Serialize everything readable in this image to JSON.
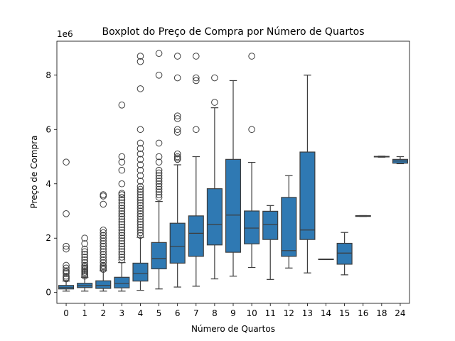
{
  "chart_data": {
    "type": "boxplot",
    "title": "Boxplot do Preço de Compra por Número de Quartos",
    "xlabel": "Número de Quartos",
    "ylabel": "Preço de Compra",
    "y_scale_label": "1e6",
    "y_unit": 1000000,
    "ylim": [
      -400000,
      9250000
    ],
    "yticks": [
      0,
      2000000,
      4000000,
      6000000,
      8000000
    ],
    "ytick_labels": [
      "0",
      "2",
      "4",
      "6",
      "8"
    ],
    "grid": false,
    "box_color": "#2f79b3",
    "categories": [
      "0",
      "1",
      "2",
      "3",
      "4",
      "5",
      "6",
      "7",
      "8",
      "9",
      "10",
      "11",
      "12",
      "13",
      "14",
      "15",
      "16",
      "18",
      "24"
    ],
    "boxes": [
      {
        "min": 50000,
        "q1": 130000,
        "median": 180000,
        "q3": 260000,
        "max": 420000,
        "outliers": [
          4800000,
          2900000,
          1700000,
          1600000,
          1000000,
          900000,
          800000,
          750000,
          700000,
          600000,
          550000,
          500000
        ]
      },
      {
        "min": 50000,
        "q1": 180000,
        "median": 250000,
        "q3": 340000,
        "max": 560000,
        "outliers": [
          2000000,
          1800000,
          1600000,
          1500000,
          1400000,
          1300000,
          1200000,
          1100000,
          1000000,
          950000,
          900000,
          850000,
          800000,
          750000,
          700000,
          650000,
          600000
        ]
      },
      {
        "min": 50000,
        "q1": 150000,
        "median": 260000,
        "q3": 430000,
        "max": 800000,
        "outliers": [
          3600000,
          3550000,
          3250000,
          2300000,
          2200000,
          2100000,
          2000000,
          1900000,
          1800000,
          1700000,
          1600000,
          1500000,
          1400000,
          1300000,
          1200000,
          1100000,
          1000000,
          950000,
          900000,
          850000
        ]
      },
      {
        "min": 50000,
        "q1": 170000,
        "median": 330000,
        "q3": 560000,
        "max": 1100000,
        "outliers": [
          6900000,
          5000000,
          4800000,
          4500000,
          4000000,
          3650000,
          3600000,
          3500000,
          3400000,
          3300000,
          3200000,
          3100000,
          3000000,
          2900000,
          2800000,
          2700000,
          2600000,
          2500000,
          2400000,
          2300000,
          2200000,
          2100000,
          2000000,
          1900000,
          1800000,
          1700000,
          1600000,
          1500000,
          1400000,
          1300000,
          1200000
        ]
      },
      {
        "min": 80000,
        "q1": 420000,
        "median": 700000,
        "q3": 1080000,
        "max": 2030000,
        "outliers": [
          8700000,
          8500000,
          7500000,
          6000000,
          5500000,
          5300000,
          5100000,
          4900000,
          4700000,
          4500000,
          4300000,
          4100000,
          3900000,
          3800000,
          3700000,
          3600000,
          3500000,
          3400000,
          3300000,
          3200000,
          3100000,
          3000000,
          2900000,
          2800000,
          2700000,
          2600000,
          2500000,
          2400000,
          2300000,
          2200000,
          2100000
        ]
      },
      {
        "min": 130000,
        "q1": 870000,
        "median": 1250000,
        "q3": 1840000,
        "max": 3350000,
        "outliers": [
          8800000,
          8000000,
          5500000,
          5000000,
          4800000,
          4500000,
          4400000,
          4300000,
          4200000,
          4100000,
          4000000,
          3900000,
          3800000,
          3700000,
          3600000,
          3500000
        ]
      },
      {
        "min": 200000,
        "q1": 1080000,
        "median": 1700000,
        "q3": 2550000,
        "max": 4700000,
        "outliers": [
          8700000,
          7900000,
          6500000,
          6400000,
          6000000,
          5900000,
          5100000,
          5000000,
          4950000,
          4900000
        ]
      },
      {
        "min": 230000,
        "q1": 1330000,
        "median": 2180000,
        "q3": 2820000,
        "max": 5000000,
        "outliers": [
          8700000,
          7900000,
          7800000,
          6000000
        ]
      },
      {
        "min": 500000,
        "q1": 1750000,
        "median": 2500000,
        "q3": 3820000,
        "max": 6800000,
        "outliers": [
          7900000,
          7000000
        ]
      },
      {
        "min": 600000,
        "q1": 1480000,
        "median": 2850000,
        "q3": 4900000,
        "max": 7800000,
        "outliers": []
      },
      {
        "min": 920000,
        "q1": 1790000,
        "median": 2370000,
        "q3": 3000000,
        "max": 4790000,
        "outliers": [
          8700000,
          6000000
        ]
      },
      {
        "min": 480000,
        "q1": 1950000,
        "median": 2500000,
        "q3": 2990000,
        "max": 3200000,
        "outliers": []
      },
      {
        "min": 900000,
        "q1": 1330000,
        "median": 1540000,
        "q3": 3500000,
        "max": 4300000,
        "outliers": []
      },
      {
        "min": 720000,
        "q1": 1950000,
        "median": 2300000,
        "q3": 5170000,
        "max": 8000000,
        "outliers": []
      },
      {
        "min": 1230000,
        "q1": 1230000,
        "median": 1230000,
        "q3": 1230000,
        "max": 1230000,
        "outliers": []
      },
      {
        "min": 650000,
        "q1": 1040000,
        "median": 1450000,
        "q3": 1810000,
        "max": 2210000,
        "outliers": []
      },
      {
        "min": 2800000,
        "q1": 2800000,
        "median": 2810000,
        "q3": 2830000,
        "max": 2830000,
        "outliers": []
      },
      {
        "min": 4980000,
        "q1": 4990000,
        "median": 5000000,
        "q3": 5010000,
        "max": 5020000,
        "outliers": []
      },
      {
        "min": 4740000,
        "q1": 4760000,
        "median": 4840000,
        "q3": 4900000,
        "max": 5000000,
        "outliers": []
      }
    ]
  }
}
